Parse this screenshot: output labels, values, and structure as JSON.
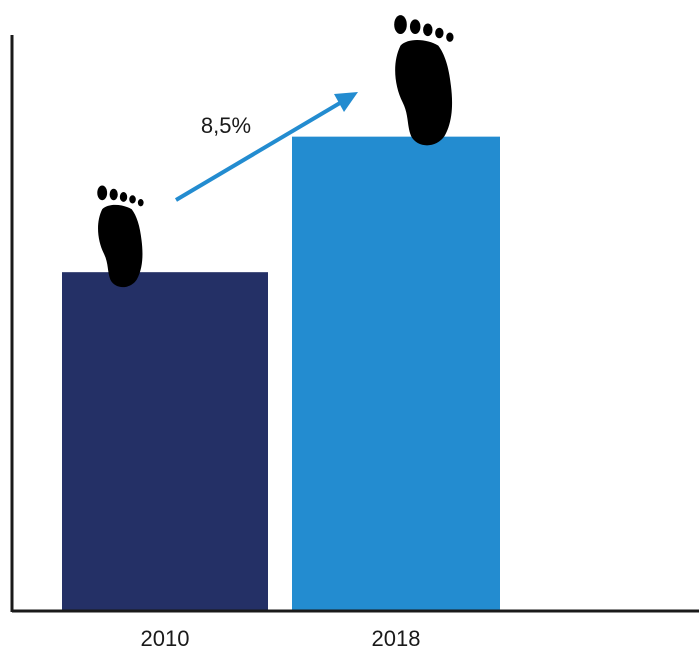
{
  "chart_data": {
    "type": "bar",
    "categories": [
      "2010",
      "2018"
    ],
    "values": [
      100,
      140
    ],
    "ylim": [
      0,
      170
    ],
    "title": "",
    "xlabel": "",
    "ylabel": "",
    "grid": false,
    "colors": [
      "#243066",
      "#238CD0"
    ],
    "arrow_color": "#238CD0",
    "growth_label": "8,5%",
    "icons": [
      "footprint-icon",
      "footprint-icon"
    ]
  }
}
